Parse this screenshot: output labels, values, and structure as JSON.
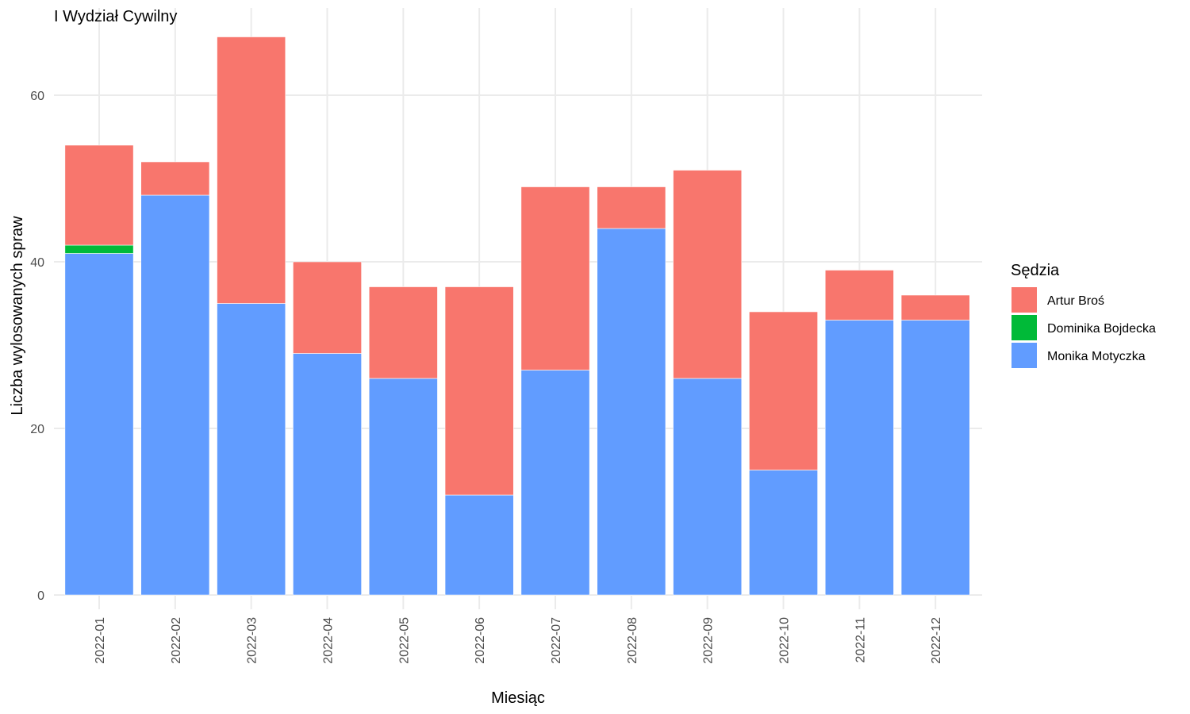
{
  "chart_data": {
    "type": "bar",
    "stacked": true,
    "title": "I Wydział Cywilny",
    "xlabel": "Miesiąc",
    "ylabel": "Liczba wylosowanych spraw",
    "categories": [
      "2022-01",
      "2022-02",
      "2022-03",
      "2022-04",
      "2022-05",
      "2022-06",
      "2022-07",
      "2022-08",
      "2022-09",
      "2022-10",
      "2022-11",
      "2022-12"
    ],
    "series": [
      {
        "name": "Monika Motyczka",
        "color": "#619CFF",
        "values": [
          41,
          48,
          35,
          29,
          26,
          12,
          27,
          44,
          26,
          15,
          33,
          33
        ]
      },
      {
        "name": "Dominika Bojdecka",
        "color": "#00BA38",
        "values": [
          1,
          0,
          0,
          0,
          0,
          0,
          0,
          0,
          0,
          0,
          0,
          0
        ]
      },
      {
        "name": "Artur Broś",
        "color": "#F8766D",
        "values": [
          12,
          4,
          32,
          11,
          11,
          25,
          22,
          5,
          25,
          19,
          6,
          3
        ]
      }
    ],
    "ylim": [
      0,
      70
    ],
    "yticks": [
      0,
      20,
      40,
      60
    ],
    "grid": true,
    "legend": {
      "title": "Sędzia",
      "position": "right",
      "order": [
        "Artur Broś",
        "Dominika Bojdecka",
        "Monika Motyczka"
      ]
    }
  }
}
